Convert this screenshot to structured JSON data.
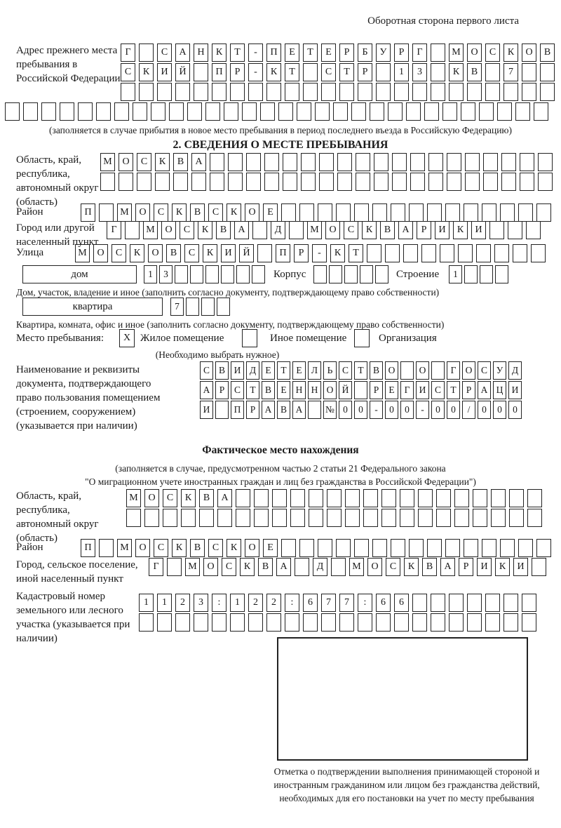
{
  "colors": {
    "ink": "#1a1a1a",
    "paper": "#ffffff",
    "line": "#222222"
  },
  "page": {
    "header_note": "Оборотная сторона первого листа"
  },
  "prev_address": {
    "label": "Адрес прежнего места пребывания в Российской Федерации",
    "rows": [
      {
        "text": "Г САНКТ-ПЕТЕРБУРГ МОСКОВ",
        "count": 24
      },
      {
        "text": "СКИЙ ПР-КТ СТР 13 КВ 7",
        "count": 24
      },
      {
        "text": "",
        "count": 24
      },
      {
        "text": "",
        "count": 30
      }
    ],
    "note": "(заполняется в случае прибытия в новое место пребывания в период последнего въезда в Российскую Федерацию)"
  },
  "section2": {
    "title": "2. СВЕДЕНИЯ О МЕСТЕ ПРЕБЫВАНИЯ",
    "region": {
      "label": "Область, край, республика, автономный округ (область)",
      "rows": [
        {
          "text": "МОСКВА",
          "count": 25
        },
        {
          "text": "",
          "count": 25
        }
      ]
    },
    "district": {
      "label": "Район",
      "row": {
        "text": "П МОСКВСКОЕ",
        "count": 26
      }
    },
    "city": {
      "label": "Город или другой населенный пункт",
      "row": {
        "text": "Г МОСКВА Д МОСКВАРИКИ",
        "count": 24
      }
    },
    "street": {
      "label": "Улица",
      "row": {
        "text": "МОСКОВСКИЙ ПР-КТ",
        "count": 26
      }
    },
    "house": {
      "box_label": "дом",
      "cells": {
        "text": "13",
        "count": 8
      },
      "korpus_label": "Корпус",
      "korpus_cells": {
        "text": "",
        "count": 5
      },
      "stroenie_label": "Строение",
      "stroenie_cells": {
        "text": "1",
        "count": 4
      },
      "note": "Дом, участок, владение и иное (заполнить согласно документу, подтверждающему право собственности)"
    },
    "apartment": {
      "box_label": "квартира",
      "cells": {
        "text": "7",
        "count": 4
      },
      "note": "Квартира, комната, офис и иное (заполнить согласно документу, подтверждающему право собственности)"
    },
    "stay_type": {
      "label": "Место пребывания:",
      "options": [
        {
          "label": "Жилое помещение",
          "mark": "X"
        },
        {
          "label": "Иное помещение",
          "mark": ""
        },
        {
          "label": "Организация",
          "mark": ""
        }
      ],
      "note": "(Необходимо выбрать нужное)"
    },
    "doc": {
      "label": "Наименование и реквизиты документа, подтверждающего право пользования помещением (строением, сооружением) (указывается при наличии)",
      "rows": [
        {
          "text": "СВИДЕТЕЛЬСТВО О ГОСУД",
          "count": 21
        },
        {
          "text": "АРСТВЕННОЙ РЕГИСТРАЦИ",
          "count": 21
        },
        {
          "text": "И ПРАВА №00-00-00/000",
          "count": 21
        }
      ]
    }
  },
  "actual_location": {
    "title": "Фактическое место нахождения",
    "note_line1": "(заполняется в случае, предусмотренном частью 2 статьи 21 Федерального закона",
    "note_line2": "\"О миграционном учете иностранных граждан и лиц без гражданства в Российской Федерации\")",
    "region": {
      "label": "Область, край, республика, автономный округ (область)",
      "rows": [
        {
          "text": "МОСКВА",
          "count": 23
        },
        {
          "text": "",
          "count": 23
        }
      ]
    },
    "district": {
      "label": "Район",
      "row": {
        "text": "П МОСКВСКОЕ",
        "count": 26
      }
    },
    "city": {
      "label": "Город, сельское поселение, иной населенный пункт",
      "row": {
        "text": "Г МОСКВА Д МОСКВАРИКИ",
        "count": 22
      }
    },
    "cadastral": {
      "label": "Кадастровый номер земельного или лесного участка (указывается при наличии)",
      "rows": [
        {
          "text": "1123:122:677:66",
          "count": 22
        },
        {
          "text": "",
          "count": 22
        }
      ]
    }
  },
  "confirmation": {
    "caption": "Отметка о подтверждении выполнения принимающей стороной и иностранным гражданином или лицом без гражданства действий, необходимых для его постановки на учет по месту пребывания"
  }
}
